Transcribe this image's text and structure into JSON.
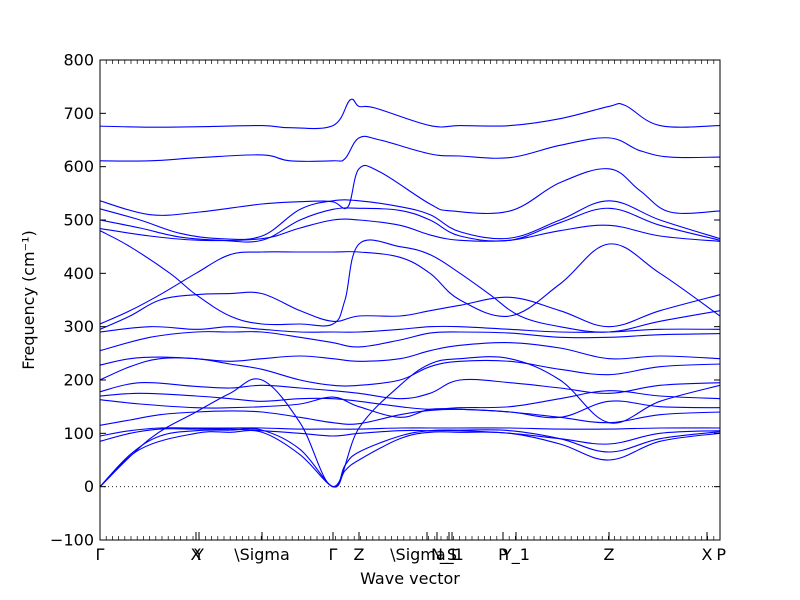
{
  "chart_data": {
    "type": "line",
    "title": "",
    "xlabel": "Wave vector",
    "ylabel": "Frequency (cm⁻¹)",
    "ylim": [
      -100,
      800
    ],
    "yticks": [
      -100,
      0,
      100,
      200,
      300,
      400,
      500,
      600,
      700,
      800
    ],
    "xlim": [
      0,
      6.2
    ],
    "zero_line": true,
    "line_color": "#0000ff",
    "high_symmetry_points": [
      {
        "label": "Γ",
        "x": 0.0
      },
      {
        "label": "X",
        "x": 0.96
      },
      {
        "label": "Y",
        "x": 0.99
      },
      {
        "label": "\\Sigma",
        "x": 1.62
      },
      {
        "label": "Γ",
        "x": 2.33
      },
      {
        "label": "Z",
        "x": 2.59
      },
      {
        "label": "\\Sigma_1",
        "x": 3.27
      },
      {
        "label": "N",
        "x": 3.37
      },
      {
        "label": "S",
        "x": 3.52
      },
      {
        "label": "_1",
        "x": 3.49
      },
      {
        "label": "P",
        "x": 4.03
      },
      {
        "label": "Y_1",
        "x": 4.16
      },
      {
        "label": "Z",
        "x": 5.09
      },
      {
        "label": "X",
        "x": 6.07
      },
      {
        "label": "P",
        "x": 6.2
      }
    ],
    "series": [
      {
        "x": [
          0,
          0.5,
          1.0,
          1.62,
          1.9,
          2.33,
          2.5,
          2.59,
          2.75,
          3.3,
          3.6,
          4.1,
          4.6,
          5.09,
          5.25,
          5.6,
          6.2
        ],
        "values": [
          676,
          674,
          675,
          677,
          673,
          677,
          725,
          713,
          710,
          677,
          677,
          677,
          690,
          713,
          715,
          677,
          677
        ]
      },
      {
        "x": [
          0,
          0.5,
          1.0,
          1.62,
          1.9,
          2.33,
          2.45,
          2.59,
          2.8,
          3.3,
          3.6,
          4.1,
          4.6,
          5.09,
          5.4,
          5.7,
          6.2
        ],
        "values": [
          611,
          611,
          617,
          622,
          611,
          611,
          615,
          654,
          650,
          624,
          620,
          617,
          640,
          654,
          630,
          618,
          618
        ]
      },
      {
        "x": [
          0,
          0.5,
          1.0,
          1.62,
          2.1,
          2.33,
          2.48,
          2.59,
          2.8,
          3.3,
          3.52,
          4.1,
          4.6,
          5.09,
          5.4,
          5.7,
          6.2
        ],
        "values": [
          536,
          510,
          515,
          530,
          535,
          534,
          525,
          596,
          590,
          530,
          517,
          517,
          570,
          596,
          555,
          515,
          517
        ]
      },
      {
        "x": [
          0,
          0.4,
          0.8,
          1.2,
          1.62,
          2.0,
          2.33,
          2.59,
          3.0,
          3.3,
          3.6,
          4.1,
          4.6,
          5.09,
          5.6,
          6.2
        ],
        "values": [
          521,
          500,
          475,
          465,
          470,
          520,
          536,
          536,
          525,
          510,
          478,
          466,
          500,
          536,
          500,
          465
        ]
      },
      {
        "x": [
          0,
          0.4,
          0.8,
          1.2,
          1.62,
          2.0,
          2.33,
          2.59,
          3.0,
          3.3,
          3.6,
          4.1,
          4.6,
          5.09,
          5.6,
          6.2
        ],
        "values": [
          500,
          485,
          468,
          462,
          462,
          500,
          520,
          522,
          518,
          500,
          470,
          462,
          495,
          522,
          490,
          462
        ]
      },
      {
        "x": [
          0,
          0.5,
          1.0,
          1.62,
          2.0,
          2.33,
          2.59,
          3.0,
          3.3,
          3.6,
          4.1,
          4.6,
          5.09,
          5.6,
          6.2
        ],
        "values": [
          484,
          470,
          462,
          465,
          485,
          500,
          500,
          490,
          472,
          462,
          462,
          480,
          490,
          470,
          460
        ]
      },
      {
        "x": [
          0,
          0.3,
          0.7,
          0.96,
          1.3,
          1.62,
          2.0,
          2.33,
          2.45,
          2.59,
          3.0,
          3.3,
          3.6,
          3.9,
          4.2,
          4.6,
          5.09,
          5.6,
          6.2
        ],
        "values": [
          480,
          450,
          400,
          360,
          320,
          305,
          305,
          305,
          350,
          455,
          450,
          435,
          400,
          360,
          320,
          300,
          290,
          310,
          330
        ]
      },
      {
        "x": [
          0,
          0.3,
          0.6,
          0.96,
          1.3,
          1.62,
          2.0,
          2.33,
          2.59,
          3.0,
          3.3,
          3.6,
          4.1,
          4.6,
          5.09,
          5.6,
          6.2
        ],
        "values": [
          305,
          330,
          360,
          400,
          435,
          440,
          440,
          440,
          440,
          430,
          400,
          350,
          320,
          380,
          455,
          400,
          320
        ]
      },
      {
        "x": [
          0,
          0.3,
          0.6,
          0.96,
          1.3,
          1.62,
          2.0,
          2.33,
          2.59,
          3.0,
          3.3,
          3.6,
          4.1,
          4.6,
          5.09,
          5.6,
          6.2
        ],
        "values": [
          295,
          320,
          350,
          360,
          362,
          362,
          330,
          310,
          320,
          320,
          330,
          340,
          355,
          330,
          300,
          330,
          360
        ]
      },
      {
        "x": [
          0,
          0.5,
          0.96,
          1.3,
          1.62,
          2.0,
          2.33,
          2.59,
          3.0,
          3.3,
          3.6,
          4.1,
          4.6,
          5.09,
          5.6,
          6.2
        ],
        "values": [
          290,
          300,
          295,
          300,
          295,
          290,
          290,
          290,
          295,
          300,
          300,
          295,
          290,
          290,
          295,
          295
        ]
      },
      {
        "x": [
          0,
          0.5,
          0.96,
          1.3,
          1.62,
          2.0,
          2.33,
          2.59,
          3.0,
          3.3,
          3.6,
          4.1,
          4.6,
          5.09,
          5.6,
          6.2
        ],
        "values": [
          255,
          280,
          290,
          290,
          290,
          280,
          270,
          262,
          275,
          288,
          290,
          288,
          280,
          280,
          285,
          287
        ]
      },
      {
        "x": [
          0,
          0.3,
          0.6,
          0.96,
          1.3,
          1.62,
          2.0,
          2.33,
          2.59,
          3.0,
          3.3,
          3.6,
          4.1,
          4.6,
          5.09,
          5.6,
          6.2
        ],
        "values": [
          228,
          240,
          243,
          240,
          235,
          240,
          245,
          240,
          235,
          240,
          255,
          265,
          270,
          260,
          240,
          245,
          240
        ]
      },
      {
        "x": [
          0,
          0.3,
          0.6,
          0.96,
          1.3,
          1.62,
          2.0,
          2.33,
          2.59,
          3.0,
          3.3,
          3.6,
          4.1,
          4.6,
          5.09,
          5.6,
          6.2
        ],
        "values": [
          200,
          225,
          240,
          240,
          230,
          220,
          200,
          190,
          190,
          200,
          225,
          235,
          235,
          220,
          210,
          225,
          230
        ]
      },
      {
        "x": [
          0,
          0.4,
          0.96,
          1.3,
          1.62,
          2.0,
          2.33,
          2.59,
          3.0,
          3.3,
          3.6,
          4.1,
          4.6,
          5.09,
          5.6,
          6.2
        ],
        "values": [
          178,
          195,
          188,
          185,
          190,
          185,
          180,
          175,
          165,
          175,
          200,
          195,
          185,
          175,
          190,
          195
        ]
      },
      {
        "x": [
          0,
          0.4,
          0.96,
          1.3,
          1.62,
          2.0,
          2.33,
          2.59,
          3.0,
          3.3,
          3.6,
          4.1,
          4.6,
          5.09,
          5.6,
          6.2
        ],
        "values": [
          170,
          175,
          170,
          165,
          160,
          165,
          165,
          160,
          150,
          145,
          148,
          150,
          165,
          180,
          170,
          165
        ]
      },
      {
        "x": [
          0,
          0.4,
          0.96,
          1.3,
          1.62,
          2.0,
          2.33,
          2.59,
          3.0,
          3.3,
          3.6,
          4.1,
          4.6,
          5.09,
          5.6,
          6.2
        ],
        "values": [
          163,
          155,
          148,
          148,
          150,
          155,
          168,
          150,
          130,
          145,
          145,
          140,
          130,
          160,
          150,
          148
        ]
      },
      {
        "x": [
          0,
          0.3,
          0.6,
          0.96,
          1.3,
          1.62,
          2.0,
          2.33,
          2.59,
          3.0,
          3.3,
          3.6,
          4.1,
          4.6,
          5.09,
          5.6,
          6.2
        ],
        "values": [
          115,
          125,
          135,
          140,
          142,
          140,
          130,
          120,
          118,
          135,
          143,
          145,
          140,
          130,
          120,
          135,
          140
        ]
      },
      {
        "x": [
          0,
          0.3,
          0.6,
          0.96,
          1.3,
          1.62,
          2.0,
          2.33,
          2.59,
          3.0,
          3.3,
          3.6,
          4.1,
          4.6,
          5.09,
          5.6,
          6.2
        ],
        "values": [
          95,
          105,
          110,
          110,
          110,
          110,
          108,
          108,
          108,
          110,
          110,
          110,
          110,
          108,
          108,
          110,
          110
        ]
      },
      {
        "x": [
          0,
          0.3,
          0.6,
          0.96,
          1.3,
          1.62,
          2.0,
          2.33,
          2.59,
          3.0,
          3.3,
          3.6,
          4.1,
          4.6,
          5.09,
          5.6,
          6.2
        ],
        "values": [
          85,
          100,
          108,
          108,
          108,
          105,
          100,
          95,
          100,
          105,
          105,
          105,
          100,
          90,
          80,
          100,
          105
        ]
      },
      {
        "x": [
          0,
          0.3,
          0.6,
          0.96,
          1.3,
          1.62,
          2.0,
          2.33,
          2.45,
          2.59,
          3.0,
          3.3,
          3.6,
          4.1,
          4.6,
          5.09,
          5.6,
          6.2
        ],
        "values": [
          0,
          60,
          95,
          105,
          106,
          106,
          70,
          0,
          40,
          65,
          95,
          105,
          106,
          105,
          90,
          65,
          90,
          103
        ]
      },
      {
        "x": [
          0,
          0.4,
          0.96,
          1.3,
          1.62,
          2.0,
          2.33,
          2.45,
          2.59,
          3.0,
          3.3,
          3.6,
          4.1,
          4.6,
          5.09,
          5.6,
          6.2
        ],
        "values": [
          0,
          70,
          100,
          102,
          102,
          60,
          0,
          30,
          50,
          90,
          102,
          102,
          100,
          80,
          50,
          85,
          100
        ]
      },
      {
        "x": [
          0,
          0.5,
          0.96,
          1.3,
          1.62,
          2.0,
          2.33,
          2.59,
          3.0,
          3.3,
          3.6,
          4.1,
          4.6,
          5.09,
          5.6,
          6.2
        ],
        "values": [
          0,
          90,
          140,
          175,
          200,
          120,
          0,
          110,
          190,
          230,
          240,
          240,
          200,
          120,
          160,
          190
        ]
      }
    ]
  }
}
